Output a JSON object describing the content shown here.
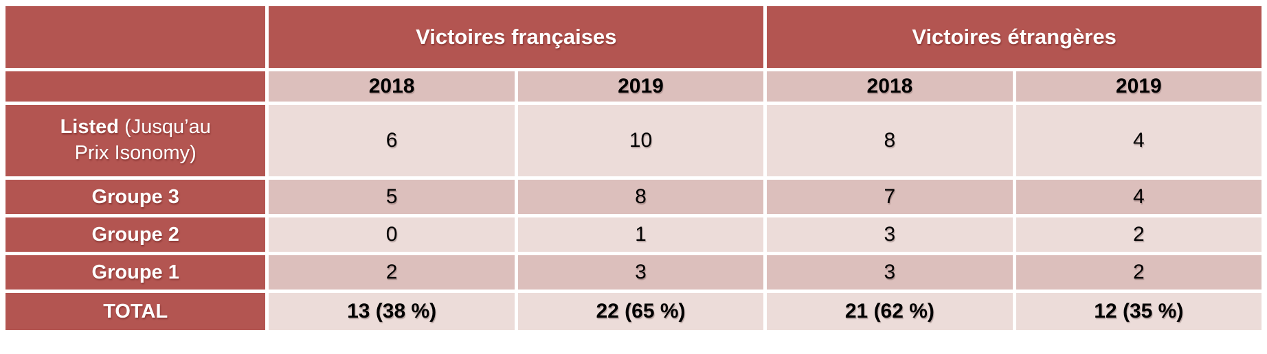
{
  "colors": {
    "header_red": "#b35551",
    "band_medium": "#dcbfbc",
    "band_light": "#ecdcd9",
    "header_text": "#ffffff",
    "value_text": "#000000",
    "grid_border": "#ffffff"
  },
  "table": {
    "group_headers": [
      "Victoires françaises",
      "Victoires étrangères"
    ],
    "year_headers": [
      "2018",
      "2019",
      "2018",
      "2019"
    ],
    "rows": [
      {
        "label_bold": "Listed",
        "label_note": "(Jusqu’au Prix Isonomy)",
        "values": [
          "6",
          "10",
          "8",
          "4"
        ]
      },
      {
        "label_bold": "Groupe 3",
        "label_note": "",
        "values": [
          "5",
          "8",
          "7",
          "4"
        ]
      },
      {
        "label_bold": "Groupe 2",
        "label_note": "",
        "values": [
          "0",
          "1",
          "3",
          "2"
        ]
      },
      {
        "label_bold": "Groupe 1",
        "label_note": "",
        "values": [
          "2",
          "3",
          "3",
          "2"
        ]
      }
    ],
    "total": {
      "label": "TOTAL",
      "values": [
        "13 (38 %)",
        "22 (65 %)",
        "21 (62 %)",
        "12 (35 %)"
      ]
    }
  },
  "chart_data": {
    "type": "table",
    "title": "",
    "column_groups": [
      {
        "label": "Victoires françaises",
        "years": [
          "2018",
          "2019"
        ]
      },
      {
        "label": "Victoires étrangères",
        "years": [
          "2018",
          "2019"
        ]
      }
    ],
    "columns": [
      "Victoires françaises 2018",
      "Victoires françaises 2019",
      "Victoires étrangères 2018",
      "Victoires étrangères 2019"
    ],
    "rows": [
      {
        "label": "Listed (Jusqu’au Prix Isonomy)",
        "values": [
          6,
          10,
          8,
          4
        ]
      },
      {
        "label": "Groupe 3",
        "values": [
          5,
          8,
          7,
          4
        ]
      },
      {
        "label": "Groupe 2",
        "values": [
          0,
          1,
          3,
          2
        ]
      },
      {
        "label": "Groupe 1",
        "values": [
          2,
          3,
          3,
          2
        ]
      },
      {
        "label": "TOTAL",
        "values": [
          "13 (38 %)",
          "22 (65 %)",
          "21 (62 %)",
          "12 (35 %)"
        ]
      }
    ]
  }
}
